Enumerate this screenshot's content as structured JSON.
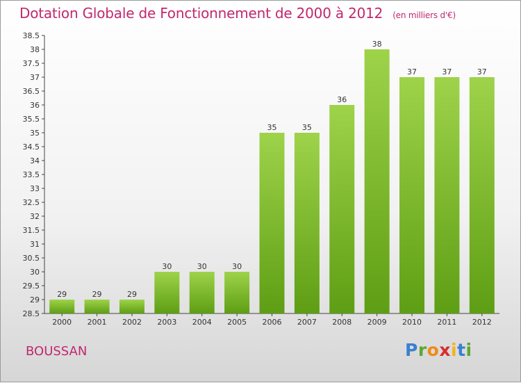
{
  "header": {
    "title": "Dotation Globale de Fonctionnement de 2000 à 2012",
    "unit": "(en milliers d'€)"
  },
  "place": "BOUSSAN",
  "logo": {
    "text": "Proxiti"
  },
  "chart_data": {
    "type": "bar",
    "title": "Dotation Globale de Fonctionnement de 2000 à 2012",
    "subtitle": "(en milliers d'€)",
    "categories": [
      "2000",
      "2001",
      "2002",
      "2003",
      "2004",
      "2005",
      "2006",
      "2007",
      "2008",
      "2009",
      "2010",
      "2011",
      "2012"
    ],
    "values": [
      29,
      29,
      29,
      30,
      30,
      30,
      35,
      35,
      36,
      38,
      37,
      37,
      37
    ],
    "ylim": [
      28.5,
      38.5
    ],
    "yticks": [
      "28.5",
      "29",
      "29.5",
      "30",
      "30.5",
      "31",
      "31.5",
      "32",
      "32.5",
      "33",
      "33.5",
      "34",
      "34.5",
      "35",
      "35.5",
      "36",
      "36.5",
      "37",
      "37.5",
      "38",
      "38.5"
    ],
    "bar_color": "#7ab82e",
    "grid": false
  }
}
